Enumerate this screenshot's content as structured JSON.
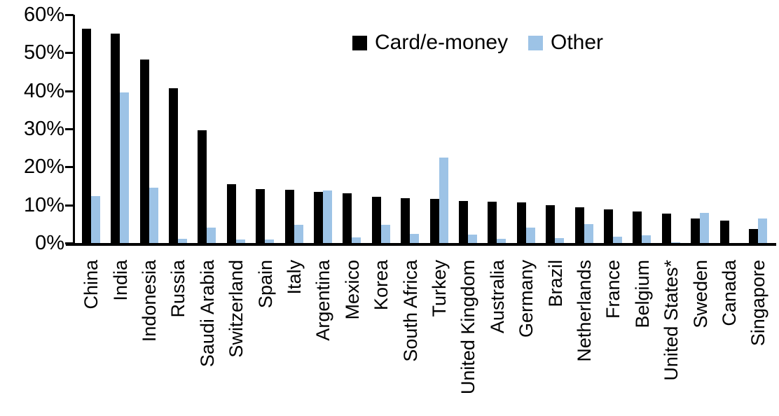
{
  "chart_data": {
    "type": "bar",
    "title": "",
    "xlabel": "",
    "ylabel": "",
    "ylim": [
      0,
      60
    ],
    "ytick_step": 10,
    "ytick_labels": [
      "0%",
      "10%",
      "20%",
      "30%",
      "40%",
      "50%",
      "60%"
    ],
    "grid": false,
    "legend_position": "top-center-inside",
    "categories": [
      "China",
      "India",
      "Indonesia",
      "Russia",
      "Saudi Arabia",
      "Switzerland",
      "Spain",
      "Italy",
      "Argentina",
      "Mexico",
      "Korea",
      "South Africa",
      "Turkey",
      "United Kingdom",
      "Australia",
      "Germany",
      "Brazil",
      "Netherlands",
      "France",
      "Belgium",
      "United States*",
      "Sweden",
      "Canada",
      "Singapore"
    ],
    "series": [
      {
        "name": "Card/e-money",
        "color": "#000000",
        "values": [
          56.3,
          55.1,
          48.2,
          40.6,
          29.7,
          15.5,
          14.1,
          14.0,
          13.4,
          13.0,
          12.2,
          11.8,
          11.6,
          11.1,
          10.8,
          10.6,
          10.0,
          9.3,
          8.8,
          8.3,
          7.8,
          6.4,
          5.8,
          3.6
        ]
      },
      {
        "name": "Other",
        "color": "#9DC3E6",
        "values": [
          12.4,
          39.6,
          14.5,
          1.1,
          4.0,
          0.9,
          1.0,
          4.7,
          13.8,
          1.4,
          4.7,
          2.4,
          22.5,
          2.3,
          1.1,
          4.1,
          1.3,
          4.9,
          1.6,
          2.1,
          0.2,
          8.0,
          0.0,
          6.4
        ]
      }
    ],
    "axis_color": "#000000",
    "text_color": "#000000"
  }
}
